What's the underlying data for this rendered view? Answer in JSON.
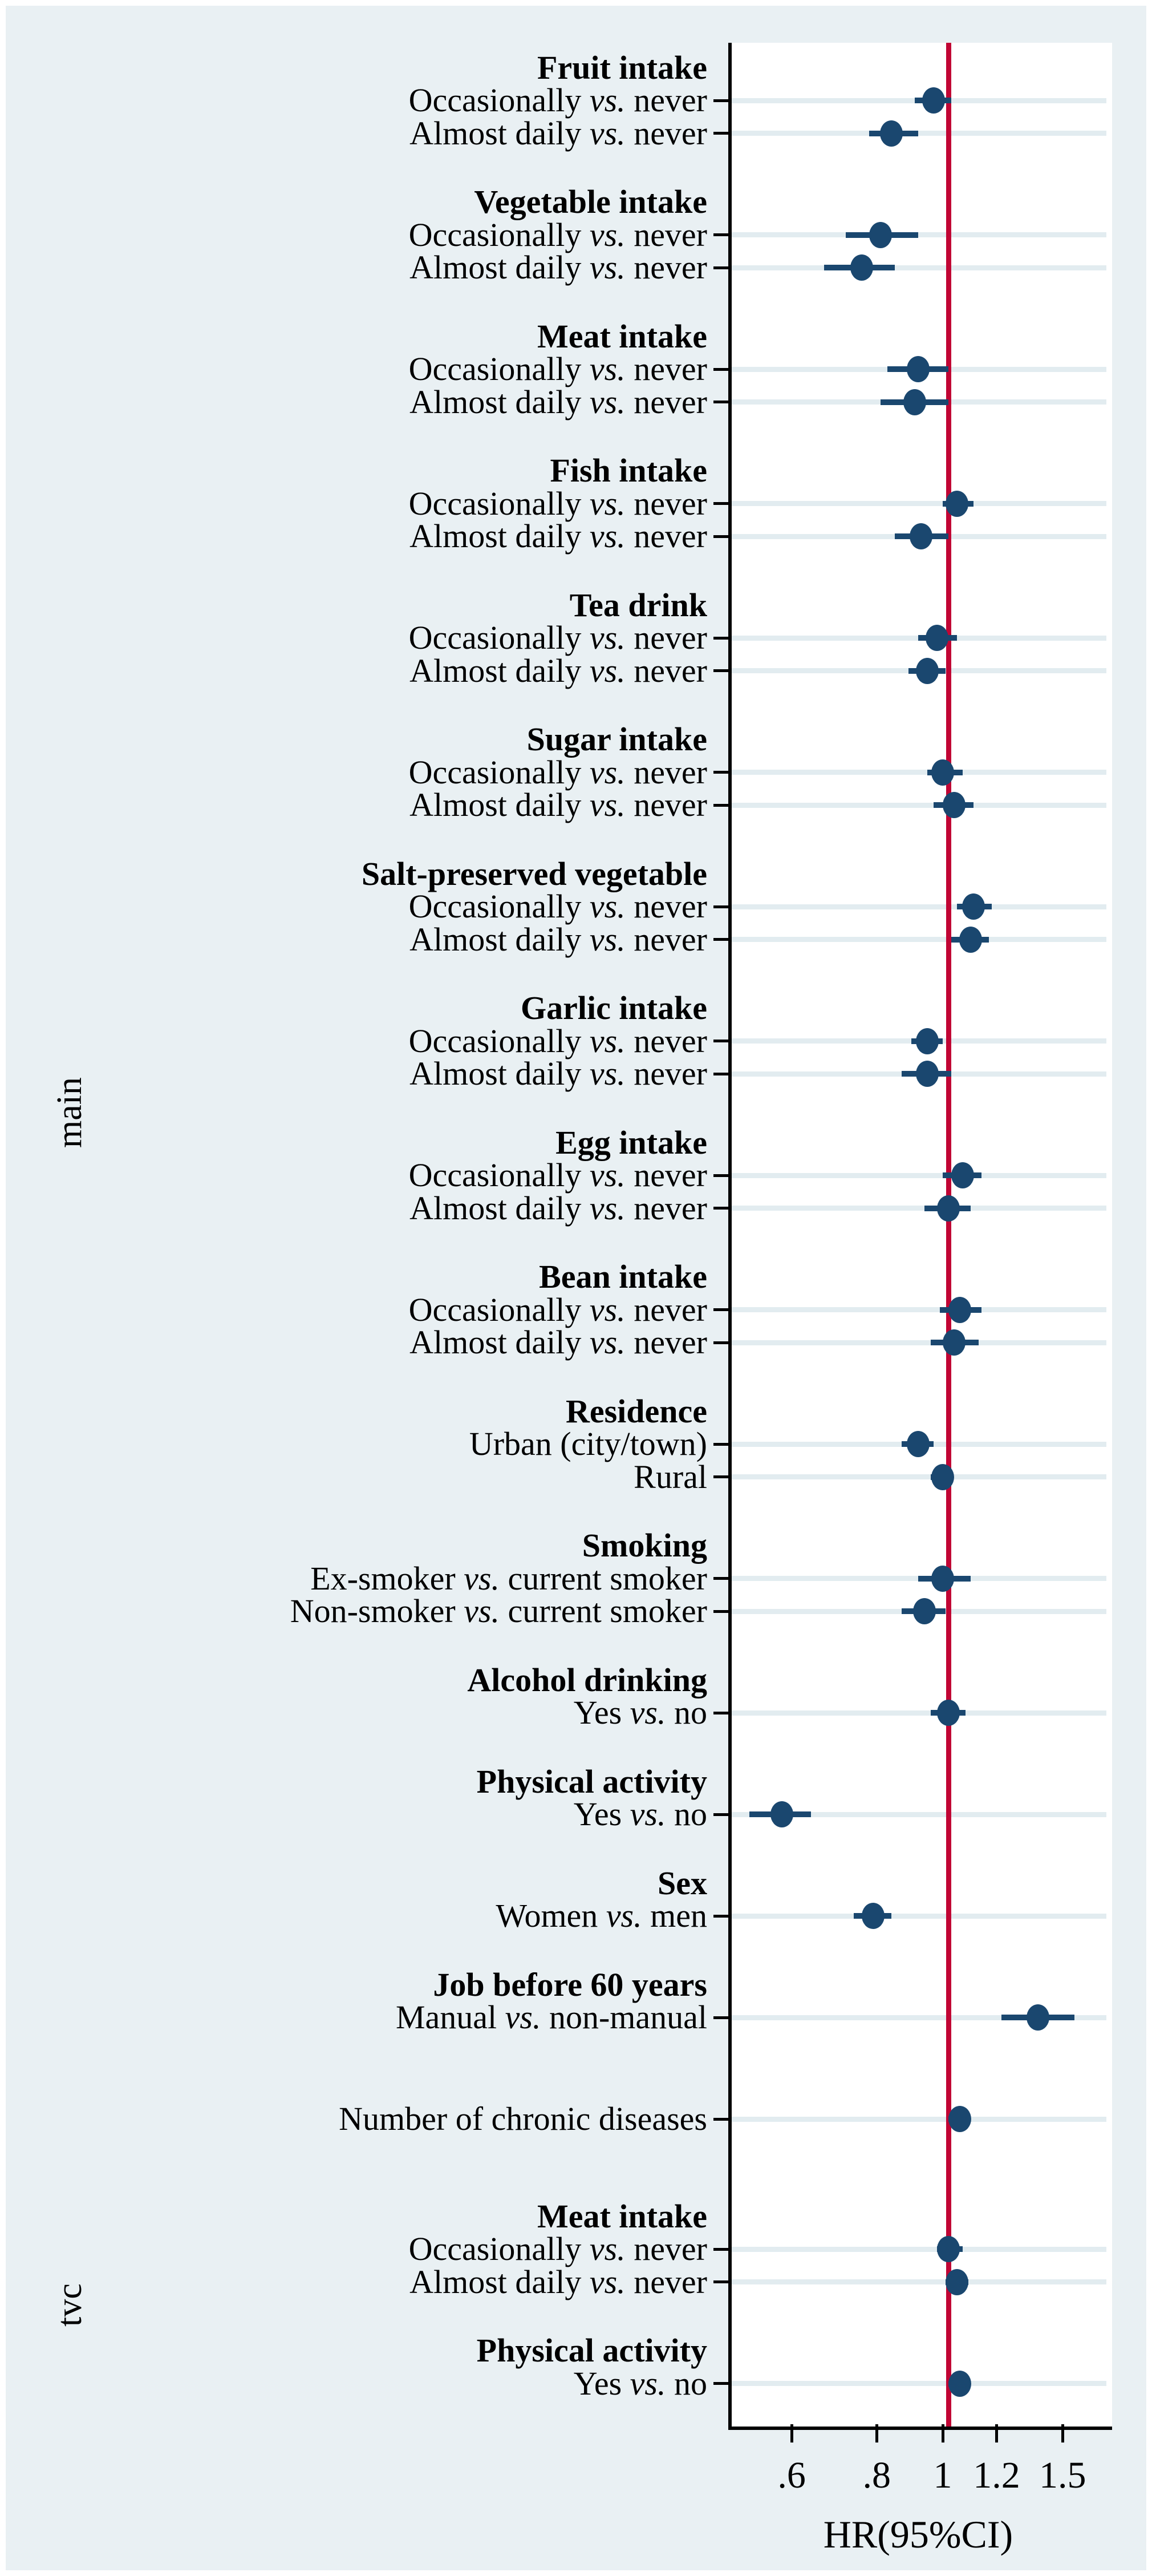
{
  "figure": {
    "background": "#e9f0f3",
    "plot_background": "#ffffff",
    "grid_color": "#e2ecf0",
    "marker_color": "#1a476f",
    "ref_line_color": "#c10534",
    "axis_color": "#000000"
  },
  "chart_data": {
    "type": "forest",
    "xlabel": "HR(95%CI)",
    "x_scale": "log",
    "legend_position": "none",
    "grid": "horizontal-per-row",
    "xlim": [
      0.48,
      1.71
    ],
    "ref_line": 1,
    "x_ticks": [
      {
        "label": ".6",
        "value": 0.6
      },
      {
        "label": ".8",
        "value": 0.8
      },
      {
        "label": "1",
        "value": 1.0
      },
      {
        "label": "1.2",
        "value": 1.2
      },
      {
        "label": "1.5",
        "value": 1.5
      }
    ],
    "sections": [
      {
        "label": "main",
        "groups": [
          {
            "header": "Fruit intake",
            "items": [
              {
                "pre": "Occasionally ",
                "vs": "vs.",
                "post": " never",
                "hr": 0.97,
                "lo": 0.91,
                "hi": 1.03
              },
              {
                "pre": "Almost daily ",
                "vs": "vs.",
                "post": " never",
                "hr": 0.84,
                "lo": 0.78,
                "hi": 0.92
              }
            ]
          },
          {
            "header": "Vegetable intake",
            "items": [
              {
                "pre": "Occasionally ",
                "vs": "vs.",
                "post": " never",
                "hr": 0.81,
                "lo": 0.72,
                "hi": 0.92
              },
              {
                "pre": "Almost daily ",
                "vs": "vs.",
                "post": " never",
                "hr": 0.76,
                "lo": 0.67,
                "hi": 0.85
              }
            ]
          },
          {
            "header": "Meat intake",
            "items": [
              {
                "pre": "Occasionally ",
                "vs": "vs.",
                "post": " never",
                "hr": 0.92,
                "lo": 0.83,
                "hi": 1.02
              },
              {
                "pre": "Almost daily ",
                "vs": "vs.",
                "post": " never",
                "hr": 0.91,
                "lo": 0.81,
                "hi": 1.02
              }
            ]
          },
          {
            "header": "Fish intake",
            "items": [
              {
                "pre": "Occasionally ",
                "vs": "vs.",
                "post": " never",
                "hr": 1.05,
                "lo": 1.0,
                "hi": 1.11
              },
              {
                "pre": "Almost daily ",
                "vs": "vs.",
                "post": " never",
                "hr": 0.93,
                "lo": 0.85,
                "hi": 1.02
              }
            ]
          },
          {
            "header": "Tea drink",
            "items": [
              {
                "pre": "Occasionally ",
                "vs": "vs.",
                "post": " never",
                "hr": 0.98,
                "lo": 0.92,
                "hi": 1.05
              },
              {
                "pre": "Almost daily ",
                "vs": "vs.",
                "post": " never",
                "hr": 0.95,
                "lo": 0.89,
                "hi": 1.01
              }
            ]
          },
          {
            "header": "Sugar intake",
            "items": [
              {
                "pre": "Occasionally ",
                "vs": "vs.",
                "post": " never",
                "hr": 1.0,
                "lo": 0.95,
                "hi": 1.07
              },
              {
                "pre": "Almost daily ",
                "vs": "vs.",
                "post": " never",
                "hr": 1.04,
                "lo": 0.97,
                "hi": 1.11
              }
            ]
          },
          {
            "header": "Salt-preserved vegetable",
            "items": [
              {
                "pre": "Occasionally ",
                "vs": "vs.",
                "post": " never",
                "hr": 1.11,
                "lo": 1.05,
                "hi": 1.18
              },
              {
                "pre": "Almost daily ",
                "vs": "vs.",
                "post": " never",
                "hr": 1.1,
                "lo": 1.03,
                "hi": 1.17
              }
            ]
          },
          {
            "header": "Garlic intake",
            "items": [
              {
                "pre": "Occasionally ",
                "vs": "vs.",
                "post": " never",
                "hr": 0.95,
                "lo": 0.9,
                "hi": 1.0
              },
              {
                "pre": "Almost daily ",
                "vs": "vs.",
                "post": " never",
                "hr": 0.95,
                "lo": 0.87,
                "hi": 1.03
              }
            ]
          },
          {
            "header": "Egg intake",
            "items": [
              {
                "pre": "Occasionally ",
                "vs": "vs.",
                "post": " never",
                "hr": 1.07,
                "lo": 1.0,
                "hi": 1.14
              },
              {
                "pre": "Almost daily ",
                "vs": "vs.",
                "post": " never",
                "hr": 1.02,
                "lo": 0.94,
                "hi": 1.1
              }
            ]
          },
          {
            "header": "Bean intake",
            "items": [
              {
                "pre": "Occasionally ",
                "vs": "vs.",
                "post": " never",
                "hr": 1.06,
                "lo": 0.99,
                "hi": 1.14
              },
              {
                "pre": "Almost daily ",
                "vs": "vs.",
                "post": " never",
                "hr": 1.04,
                "lo": 0.96,
                "hi": 1.13
              }
            ]
          },
          {
            "header": "Residence",
            "items": [
              {
                "pre": "Urban (city/town)",
                "vs": "",
                "post": "",
                "hr": 0.92,
                "lo": 0.87,
                "hi": 0.97
              },
              {
                "pre": "Rural",
                "vs": "",
                "post": "",
                "hr": 1.0,
                "lo": 0.96,
                "hi": 1.03
              }
            ]
          },
          {
            "header": "Smoking",
            "items": [
              {
                "pre": "Ex-smoker ",
                "vs": "vs.",
                "post": " current smoker",
                "hr": 1.0,
                "lo": 0.92,
                "hi": 1.1
              },
              {
                "pre": "Non-smoker ",
                "vs": "vs.",
                "post": " current smoker",
                "hr": 0.94,
                "lo": 0.87,
                "hi": 1.01
              }
            ]
          },
          {
            "header": "Alcohol drinking",
            "items": [
              {
                "pre": "Yes ",
                "vs": "vs.",
                "post": " no",
                "hr": 1.02,
                "lo": 0.96,
                "hi": 1.08
              }
            ]
          },
          {
            "header": "Physical activity",
            "items": [
              {
                "pre": "Yes ",
                "vs": "vs.",
                "post": " no",
                "hr": 0.58,
                "lo": 0.52,
                "hi": 0.64
              }
            ]
          },
          {
            "header": "Sex",
            "items": [
              {
                "pre": "Women ",
                "vs": "vs.",
                "post": " men",
                "hr": 0.79,
                "lo": 0.74,
                "hi": 0.84
              }
            ]
          },
          {
            "header": "Job before 60 years",
            "items": [
              {
                "pre": "Manual ",
                "vs": "vs.",
                "post": " non-manual",
                "hr": 1.38,
                "lo": 1.22,
                "hi": 1.56
              }
            ]
          },
          {
            "header": "",
            "items": [
              {
                "pre": "Number of chronic diseases",
                "vs": "",
                "post": "",
                "hr": 1.06,
                "lo": 1.02,
                "hi": 1.1
              }
            ]
          }
        ]
      },
      {
        "label": "tvc",
        "groups": [
          {
            "header": "Meat intake",
            "items": [
              {
                "pre": "Occasionally ",
                "vs": "vs.",
                "post": " never",
                "hr": 1.02,
                "lo": 0.98,
                "hi": 1.07
              },
              {
                "pre": "Almost daily ",
                "vs": "vs.",
                "post": " never",
                "hr": 1.05,
                "lo": 1.01,
                "hi": 1.09
              }
            ]
          },
          {
            "header": "Physical activity",
            "items": [
              {
                "pre": "Yes ",
                "vs": "vs.",
                "post": " no",
                "hr": 1.06,
                "lo": 1.02,
                "hi": 1.1
              }
            ]
          }
        ]
      }
    ]
  }
}
